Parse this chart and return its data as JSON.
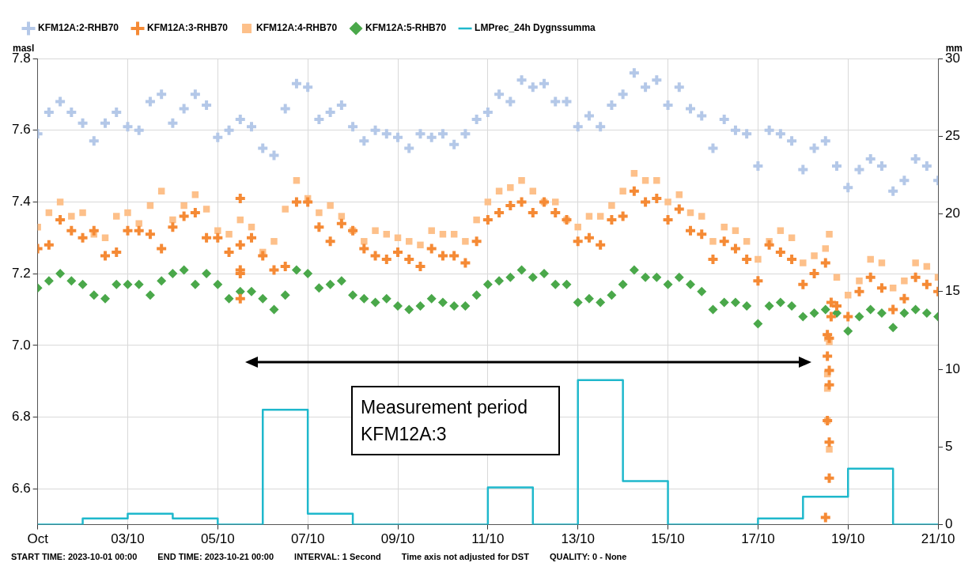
{
  "chart_data": {
    "type": "scatter",
    "ylabel": "masl",
    "y2label": "mm",
    "x": [
      "2023-10-01T00:00",
      "2023-10-01T06:00",
      "2023-10-01T12:00",
      "2023-10-01T18:00",
      "2023-10-02T00:00",
      "2023-10-02T06:00",
      "2023-10-02T12:00",
      "2023-10-02T18:00",
      "2023-10-03T00:00",
      "2023-10-03T06:00",
      "2023-10-03T12:00",
      "2023-10-03T18:00",
      "2023-10-04T00:00",
      "2023-10-04T06:00",
      "2023-10-04T12:00",
      "2023-10-04T18:00",
      "2023-10-05T00:00",
      "2023-10-05T06:00",
      "2023-10-05T12:00",
      "2023-10-05T18:00",
      "2023-10-06T00:00",
      "2023-10-06T06:00",
      "2023-10-06T12:00",
      "2023-10-06T18:00",
      "2023-10-07T00:00",
      "2023-10-07T06:00",
      "2023-10-07T12:00",
      "2023-10-07T18:00",
      "2023-10-08T00:00",
      "2023-10-08T06:00",
      "2023-10-08T12:00",
      "2023-10-08T18:00",
      "2023-10-09T00:00",
      "2023-10-09T06:00",
      "2023-10-09T12:00",
      "2023-10-09T18:00",
      "2023-10-10T00:00",
      "2023-10-10T06:00",
      "2023-10-10T12:00",
      "2023-10-10T18:00",
      "2023-10-11T00:00",
      "2023-10-11T06:00",
      "2023-10-11T12:00",
      "2023-10-11T18:00",
      "2023-10-12T00:00",
      "2023-10-12T06:00",
      "2023-10-12T12:00",
      "2023-10-12T18:00",
      "2023-10-13T00:00",
      "2023-10-13T06:00",
      "2023-10-13T12:00",
      "2023-10-13T18:00",
      "2023-10-14T00:00",
      "2023-10-14T06:00",
      "2023-10-14T12:00",
      "2023-10-14T18:00",
      "2023-10-15T00:00",
      "2023-10-15T06:00",
      "2023-10-15T12:00",
      "2023-10-15T18:00",
      "2023-10-16T00:00",
      "2023-10-16T06:00",
      "2023-10-16T12:00",
      "2023-10-16T18:00",
      "2023-10-17T00:00",
      "2023-10-17T06:00",
      "2023-10-17T12:00",
      "2023-10-17T18:00",
      "2023-10-18T00:00",
      "2023-10-18T06:00",
      "2023-10-18T12:00",
      "2023-10-18T18:00",
      "2023-10-19T00:00",
      "2023-10-19T06:00",
      "2023-10-19T12:00",
      "2023-10-19T18:00",
      "2023-10-20T00:00",
      "2023-10-20T06:00",
      "2023-10-20T12:00",
      "2023-10-20T18:00",
      "2023-10-21T00:00"
    ],
    "series": [
      {
        "name": "KFM12A:2-RHB70",
        "marker": "cross",
        "color": "#b4c8e8",
        "values": [
          7.59,
          7.65,
          7.68,
          7.65,
          7.62,
          7.57,
          7.62,
          7.65,
          7.61,
          7.6,
          7.68,
          7.7,
          7.62,
          7.66,
          7.7,
          7.67,
          7.58,
          7.6,
          7.63,
          7.61,
          7.55,
          7.53,
          7.66,
          7.73,
          7.72,
          7.63,
          7.65,
          7.67,
          7.61,
          7.57,
          7.6,
          7.59,
          7.58,
          7.55,
          7.59,
          7.58,
          7.59,
          7.56,
          7.59,
          7.63,
          7.65,
          7.7,
          7.68,
          7.74,
          7.72,
          7.73,
          7.68,
          7.68,
          7.61,
          7.64,
          7.61,
          7.67,
          7.7,
          7.76,
          7.72,
          7.74,
          7.67,
          7.72,
          7.66,
          7.64,
          7.55,
          7.63,
          7.6,
          7.59,
          7.5,
          7.6,
          7.59,
          7.57,
          7.49,
          7.55,
          7.57,
          7.5,
          7.44,
          7.49,
          7.52,
          7.5,
          7.43,
          7.46,
          7.52,
          7.5,
          7.46
        ]
      },
      {
        "name": "KFM12A:3-RHB70",
        "marker": "cross",
        "color": "#f58a35",
        "x": [
          "2023-10-01T00:00",
          "2023-10-01T06:00",
          "2023-10-01T12:00",
          "2023-10-01T18:00",
          "2023-10-02T00:00",
          "2023-10-02T06:00",
          "2023-10-02T12:00",
          "2023-10-02T18:00",
          "2023-10-03T00:00",
          "2023-10-03T06:00",
          "2023-10-03T12:00",
          "2023-10-03T18:00",
          "2023-10-04T00:00",
          "2023-10-04T06:00",
          "2023-10-04T12:00",
          "2023-10-04T18:00",
          "2023-10-05T00:00",
          "2023-10-05T06:00",
          "2023-10-05T12:00",
          "2023-10-05T18:00",
          "2023-10-06T00:00",
          "2023-10-06T06:00",
          "2023-10-06T12:00",
          "2023-10-06T18:00",
          "2023-10-07T00:00",
          "2023-10-07T06:00",
          "2023-10-07T12:00",
          "2023-10-07T18:00",
          "2023-10-08T00:00",
          "2023-10-08T06:00",
          "2023-10-08T12:00",
          "2023-10-08T18:00",
          "2023-10-09T00:00",
          "2023-10-09T06:00",
          "2023-10-09T12:00",
          "2023-10-09T18:00",
          "2023-10-10T00:00",
          "2023-10-10T06:00",
          "2023-10-10T12:00",
          "2023-10-10T18:00",
          "2023-10-11T00:00",
          "2023-10-11T06:00",
          "2023-10-11T12:00",
          "2023-10-11T18:00",
          "2023-10-12T00:00",
          "2023-10-12T06:00",
          "2023-10-12T12:00",
          "2023-10-12T18:00",
          "2023-10-13T00:00",
          "2023-10-13T06:00",
          "2023-10-13T12:00",
          "2023-10-13T18:00",
          "2023-10-14T00:00",
          "2023-10-14T06:00",
          "2023-10-14T12:00",
          "2023-10-14T18:00",
          "2023-10-15T00:00",
          "2023-10-15T06:00",
          "2023-10-15T12:00",
          "2023-10-15T18:00",
          "2023-10-16T00:00",
          "2023-10-16T06:00",
          "2023-10-16T12:00",
          "2023-10-16T18:00",
          "2023-10-17T00:00",
          "2023-10-17T06:00",
          "2023-10-17T12:00",
          "2023-10-17T18:00",
          "2023-10-18T00:00",
          "2023-10-18T06:00",
          "2023-10-18T12:00",
          "2023-10-18T18:00",
          "2023-10-19T00:00",
          "2023-10-19T06:00",
          "2023-10-19T12:00",
          "2023-10-19T18:00",
          "2023-10-20T00:00",
          "2023-10-20T06:00",
          "2023-10-20T12:00",
          "2023-10-20T18:00",
          "2023-10-21T00:00",
          "2023-10-05T12:00",
          "2023-10-05T12:00",
          "2023-10-05T12:00",
          "2023-10-05T12:00",
          "2023-10-18T13:00",
          "2023-10-18T13:00",
          "2023-10-18T14:00",
          "2023-10-18T14:00",
          "2023-10-18T13:00",
          "2023-10-18T14:00",
          "2023-10-18T14:00",
          "2023-10-18T12:00",
          "2023-10-18T15:00",
          "2023-10-18T15:00",
          "2023-10-18T14:00"
        ],
        "values": [
          7.27,
          7.28,
          7.35,
          7.32,
          7.3,
          7.32,
          7.25,
          7.26,
          7.32,
          7.32,
          7.31,
          7.27,
          7.33,
          7.36,
          7.37,
          7.3,
          7.3,
          7.26,
          7.28,
          7.3,
          7.25,
          7.21,
          7.22,
          7.4,
          7.4,
          7.33,
          7.29,
          7.34,
          7.32,
          7.27,
          7.25,
          7.24,
          7.26,
          7.24,
          7.22,
          7.27,
          7.25,
          7.25,
          7.23,
          7.29,
          7.35,
          7.37,
          7.39,
          7.4,
          7.37,
          7.4,
          7.37,
          7.35,
          7.29,
          7.3,
          7.28,
          7.35,
          7.36,
          7.43,
          7.4,
          7.41,
          7.35,
          7.38,
          7.32,
          7.31,
          7.24,
          7.29,
          7.27,
          7.24,
          7.18,
          7.28,
          7.26,
          7.24,
          7.17,
          7.2,
          7.23,
          7.11,
          7.08,
          7.15,
          7.19,
          7.16,
          7.1,
          7.13,
          7.19,
          7.17,
          7.15,
          7.41,
          7.21,
          7.2,
          7.13,
          7.03,
          6.97,
          6.93,
          6.89,
          6.79,
          6.73,
          6.63,
          6.52,
          7.12,
          7.08,
          7.02
        ]
      },
      {
        "name": "KFM12A:4-RHB70",
        "marker": "square",
        "color": "#fdc08a",
        "x": [
          "2023-10-01T00:00",
          "2023-10-01T06:00",
          "2023-10-01T12:00",
          "2023-10-01T18:00",
          "2023-10-02T00:00",
          "2023-10-02T06:00",
          "2023-10-02T12:00",
          "2023-10-02T18:00",
          "2023-10-03T00:00",
          "2023-10-03T06:00",
          "2023-10-03T12:00",
          "2023-10-03T18:00",
          "2023-10-04T00:00",
          "2023-10-04T06:00",
          "2023-10-04T12:00",
          "2023-10-04T18:00",
          "2023-10-05T00:00",
          "2023-10-05T06:00",
          "2023-10-05T12:00",
          "2023-10-05T18:00",
          "2023-10-06T00:00",
          "2023-10-06T06:00",
          "2023-10-06T12:00",
          "2023-10-06T18:00",
          "2023-10-07T00:00",
          "2023-10-07T06:00",
          "2023-10-07T12:00",
          "2023-10-07T18:00",
          "2023-10-08T00:00",
          "2023-10-08T06:00",
          "2023-10-08T12:00",
          "2023-10-08T18:00",
          "2023-10-09T00:00",
          "2023-10-09T06:00",
          "2023-10-09T12:00",
          "2023-10-09T18:00",
          "2023-10-10T00:00",
          "2023-10-10T06:00",
          "2023-10-10T12:00",
          "2023-10-10T18:00",
          "2023-10-11T00:00",
          "2023-10-11T06:00",
          "2023-10-11T12:00",
          "2023-10-11T18:00",
          "2023-10-12T00:00",
          "2023-10-12T06:00",
          "2023-10-12T12:00",
          "2023-10-12T18:00",
          "2023-10-13T00:00",
          "2023-10-13T06:00",
          "2023-10-13T12:00",
          "2023-10-13T18:00",
          "2023-10-14T00:00",
          "2023-10-14T06:00",
          "2023-10-14T12:00",
          "2023-10-14T18:00",
          "2023-10-15T00:00",
          "2023-10-15T06:00",
          "2023-10-15T12:00",
          "2023-10-15T18:00",
          "2023-10-16T00:00",
          "2023-10-16T06:00",
          "2023-10-16T12:00",
          "2023-10-16T18:00",
          "2023-10-17T00:00",
          "2023-10-17T06:00",
          "2023-10-17T12:00",
          "2023-10-17T18:00",
          "2023-10-18T00:00",
          "2023-10-18T06:00",
          "2023-10-18T12:00",
          "2023-10-18T18:00",
          "2023-10-19T00:00",
          "2023-10-19T06:00",
          "2023-10-19T12:00",
          "2023-10-19T18:00",
          "2023-10-20T00:00",
          "2023-10-20T06:00",
          "2023-10-20T12:00",
          "2023-10-20T18:00",
          "2023-10-21T00:00",
          "2023-10-18T13:00",
          "2023-10-18T13:00",
          "2023-10-18T13:00",
          "2023-10-18T13:00",
          "2023-10-18T14:00",
          "2023-10-18T14:00",
          "2023-10-18T14:00"
        ],
        "values": [
          7.33,
          7.37,
          7.4,
          7.36,
          7.37,
          7.31,
          7.3,
          7.36,
          7.37,
          7.34,
          7.39,
          7.43,
          7.35,
          7.39,
          7.42,
          7.38,
          7.32,
          7.31,
          7.35,
          7.33,
          7.26,
          7.29,
          7.38,
          7.46,
          7.41,
          7.37,
          7.39,
          7.36,
          7.32,
          7.29,
          7.32,
          7.31,
          7.3,
          7.29,
          7.28,
          7.32,
          7.31,
          7.31,
          7.29,
          7.35,
          7.4,
          7.43,
          7.44,
          7.46,
          7.43,
          7.4,
          7.4,
          7.35,
          7.33,
          7.36,
          7.36,
          7.39,
          7.43,
          7.48,
          7.46,
          7.46,
          7.4,
          7.42,
          7.37,
          7.36,
          7.29,
          7.33,
          7.32,
          7.29,
          7.24,
          7.29,
          7.32,
          7.3,
          7.23,
          7.25,
          7.27,
          7.19,
          7.14,
          7.18,
          7.24,
          7.23,
          7.16,
          7.18,
          7.23,
          7.22,
          7.19,
          7.02,
          6.92,
          6.88,
          6.79,
          7.01,
          6.71,
          7.31
        ]
      },
      {
        "name": "KFM12A:5-RHB70",
        "marker": "diamond",
        "color": "#4aa84a",
        "values": [
          7.16,
          7.18,
          7.2,
          7.18,
          7.17,
          7.14,
          7.13,
          7.17,
          7.17,
          7.17,
          7.14,
          7.18,
          7.2,
          7.21,
          7.17,
          7.2,
          7.17,
          7.13,
          7.15,
          7.15,
          7.13,
          7.1,
          7.14,
          7.21,
          7.2,
          7.16,
          7.17,
          7.18,
          7.14,
          7.13,
          7.12,
          7.13,
          7.11,
          7.1,
          7.11,
          7.13,
          7.12,
          7.11,
          7.11,
          7.14,
          7.17,
          7.18,
          7.19,
          7.21,
          7.19,
          7.2,
          7.17,
          7.17,
          7.12,
          7.13,
          7.12,
          7.14,
          7.17,
          7.21,
          7.19,
          7.19,
          7.17,
          7.19,
          7.17,
          7.15,
          7.1,
          7.12,
          7.12,
          7.11,
          7.06,
          7.11,
          7.12,
          7.11,
          7.08,
          7.09,
          7.1,
          7.09,
          7.04,
          7.08,
          7.1,
          7.09,
          7.05,
          7.09,
          7.1,
          7.09,
          7.08
        ]
      },
      {
        "name": "LMPrec_24h Dygnssumma",
        "type": "step",
        "axis": "y2",
        "color": "#1fb8cc",
        "x": [
          "2023-10-01",
          "2023-10-02",
          "2023-10-03",
          "2023-10-04",
          "2023-10-05",
          "2023-10-06",
          "2023-10-07",
          "2023-10-08",
          "2023-10-09",
          "2023-10-10",
          "2023-10-11",
          "2023-10-12",
          "2023-10-13",
          "2023-10-14",
          "2023-10-15",
          "2023-10-16",
          "2023-10-17",
          "2023-10-18",
          "2023-10-19",
          "2023-10-20",
          "2023-10-21"
        ],
        "values": [
          0,
          0.4,
          0.7,
          0.4,
          0,
          7.4,
          0.7,
          0,
          0,
          0,
          2.4,
          0,
          9.3,
          2.8,
          0,
          0,
          0.4,
          1.8,
          3.6,
          0,
          0
        ]
      }
    ],
    "xlim": [
      "2023-10-01",
      "2023-10-21"
    ],
    "xticks": [
      {
        "value": "2023-10-01",
        "label": "Oct"
      },
      {
        "value": "2023-10-03",
        "label": "03/10"
      },
      {
        "value": "2023-10-05",
        "label": "05/10"
      },
      {
        "value": "2023-10-07",
        "label": "07/10"
      },
      {
        "value": "2023-10-09",
        "label": "09/10"
      },
      {
        "value": "2023-10-11",
        "label": "11/10"
      },
      {
        "value": "2023-10-13",
        "label": "13/10"
      },
      {
        "value": "2023-10-15",
        "label": "15/10"
      },
      {
        "value": "2023-10-17",
        "label": "17/10"
      },
      {
        "value": "2023-10-19",
        "label": "19/10"
      },
      {
        "value": "2023-10-21",
        "label": "21/10"
      }
    ],
    "ylim": [
      6.5,
      7.8
    ],
    "yticks": [
      6.6,
      6.8,
      {
        "value": 7,
        "label": "7.0"
      },
      7.2,
      7.4,
      7.6,
      7.8
    ],
    "y2lim": [
      0,
      30
    ],
    "y2ticks": [
      0,
      5,
      10,
      15,
      20,
      25,
      30
    ],
    "annotations": [
      "Measurement period KFM12A:3",
      "START TIME: 2023-10-01 00:00",
      "END TIME: 2023-10-21 00:00",
      "INTERVAL: 1 Second",
      "Time axis not adjusted for DST",
      "QUALITY: 0 - None"
    ],
    "grid": true,
    "legend": "top left"
  }
}
